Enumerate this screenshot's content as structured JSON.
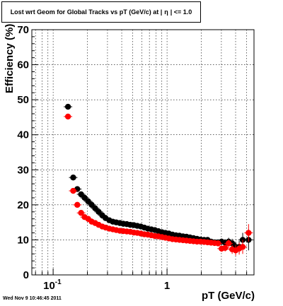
{
  "header": {
    "title_prefix": "Lost wrt Geom for Global Tracks vs pT (GeV/c) at |",
    "title_eta": "η",
    "title_suffix": "| <= 1.0"
  },
  "footer": {
    "timestamp": "Wed Nov  9 10:46:45 2011"
  },
  "chart_data": {
    "type": "scatter",
    "title": "Lost wrt Geom for Global Tracks vs pT (GeV/c) at | η | <= 1.0",
    "xlabel": "pT (GeV/c)",
    "ylabel": "Efficiency (%)",
    "xscale": "log",
    "xlim": [
      0.065,
      5.8
    ],
    "ylim": [
      0,
      70
    ],
    "grid": true,
    "x_ticks": [
      {
        "value": 0.1,
        "label": "10",
        "sup": "-1"
      },
      {
        "value": 1,
        "label": "1",
        "sup": ""
      }
    ],
    "y_ticks": [
      0,
      10,
      20,
      30,
      40,
      50,
      60,
      70
    ],
    "series": [
      {
        "color": "#000000",
        "points": [
          [
            0.135,
            48.0
          ],
          [
            0.15,
            27.8
          ],
          [
            0.163,
            24.5
          ],
          [
            0.176,
            23.0
          ],
          [
            0.189,
            22.0
          ],
          [
            0.203,
            21.0
          ],
          [
            0.218,
            20.0
          ],
          [
            0.234,
            19.0
          ],
          [
            0.251,
            18.0
          ],
          [
            0.27,
            17.0
          ],
          [
            0.289,
            16.2
          ],
          [
            0.311,
            15.6
          ],
          [
            0.334,
            15.2
          ],
          [
            0.358,
            15.0
          ],
          [
            0.385,
            14.8
          ],
          [
            0.413,
            14.6
          ],
          [
            0.443,
            14.5
          ],
          [
            0.476,
            14.3
          ],
          [
            0.511,
            14.2
          ],
          [
            0.548,
            14.0
          ],
          [
            0.589,
            13.8
          ],
          [
            0.632,
            13.5
          ],
          [
            0.678,
            13.2
          ],
          [
            0.728,
            13.0
          ],
          [
            0.782,
            12.8
          ],
          [
            0.839,
            12.5
          ],
          [
            0.901,
            12.2
          ],
          [
            0.967,
            12.0
          ],
          [
            1.038,
            11.8
          ],
          [
            1.115,
            11.5
          ],
          [
            1.197,
            11.3
          ],
          [
            1.285,
            11.2
          ],
          [
            1.38,
            11.0
          ],
          [
            1.481,
            10.9
          ],
          [
            1.59,
            10.7
          ],
          [
            1.707,
            10.5
          ],
          [
            1.833,
            10.3
          ],
          [
            1.968,
            10.1
          ],
          [
            2.113,
            10.0
          ],
          [
            2.269,
            10.0
          ],
          [
            2.435,
            9.5
          ],
          [
            2.615,
            9.3
          ],
          [
            2.807,
            9.3
          ],
          [
            3.014,
            9.5
          ],
          [
            3.236,
            9.2
          ],
          [
            3.474,
            9.5
          ],
          [
            3.73,
            9.0
          ],
          [
            4.004,
            8.0
          ],
          [
            4.3,
            8.0
          ],
          [
            4.616,
            10.0
          ],
          [
            5.198,
            10.0
          ]
        ],
        "errors": [
          [
            0.135,
            0.5
          ],
          [
            0.15,
            0.8
          ],
          [
            0.163,
            0.6
          ],
          [
            3.014,
            0.9
          ],
          [
            3.236,
            1.0
          ],
          [
            3.474,
            1.1
          ],
          [
            3.73,
            1.3
          ],
          [
            4.004,
            1.5
          ],
          [
            4.3,
            1.7
          ],
          [
            4.616,
            2.0
          ],
          [
            5.198,
            3.0
          ]
        ]
      },
      {
        "color": "#ff0000",
        "points": [
          [
            0.135,
            45.2
          ],
          [
            0.15,
            24.0
          ],
          [
            0.163,
            20.0
          ],
          [
            0.176,
            17.7
          ],
          [
            0.189,
            16.5
          ],
          [
            0.203,
            16.0
          ],
          [
            0.218,
            15.2
          ],
          [
            0.234,
            14.8
          ],
          [
            0.251,
            14.3
          ],
          [
            0.27,
            13.8
          ],
          [
            0.289,
            13.5
          ],
          [
            0.311,
            13.2
          ],
          [
            0.334,
            13.0
          ],
          [
            0.358,
            12.8
          ],
          [
            0.385,
            12.6
          ],
          [
            0.413,
            12.5
          ],
          [
            0.443,
            12.4
          ],
          [
            0.476,
            12.3
          ],
          [
            0.511,
            12.1
          ],
          [
            0.548,
            12.0
          ],
          [
            0.589,
            11.8
          ],
          [
            0.632,
            11.6
          ],
          [
            0.678,
            11.5
          ],
          [
            0.728,
            11.3
          ],
          [
            0.782,
            11.1
          ],
          [
            0.839,
            11.0
          ],
          [
            0.901,
            10.8
          ],
          [
            0.967,
            10.6
          ],
          [
            1.038,
            10.4
          ],
          [
            1.115,
            10.2
          ],
          [
            1.197,
            10.1
          ],
          [
            1.285,
            10.0
          ],
          [
            1.38,
            9.9
          ],
          [
            1.481,
            9.8
          ],
          [
            1.59,
            9.7
          ],
          [
            1.707,
            9.6
          ],
          [
            1.833,
            9.5
          ],
          [
            1.968,
            9.5
          ],
          [
            2.113,
            9.4
          ],
          [
            2.269,
            9.3
          ],
          [
            2.435,
            9.2
          ],
          [
            2.615,
            9.1
          ],
          [
            2.807,
            9.0
          ],
          [
            3.014,
            7.5
          ],
          [
            3.236,
            7.7
          ],
          [
            3.474,
            9.0
          ],
          [
            3.73,
            7.3
          ],
          [
            4.004,
            7.0
          ],
          [
            4.3,
            7.5
          ],
          [
            4.616,
            8.0
          ],
          [
            5.198,
            12.0
          ]
        ],
        "errors": [
          [
            0.135,
            0.5
          ],
          [
            0.15,
            0.8
          ],
          [
            0.163,
            0.6
          ],
          [
            3.014,
            0.9
          ],
          [
            3.236,
            1.0
          ],
          [
            3.474,
            1.1
          ],
          [
            3.73,
            1.3
          ],
          [
            4.004,
            1.5
          ],
          [
            4.3,
            1.7
          ],
          [
            4.616,
            2.0
          ],
          [
            5.198,
            2.5
          ]
        ]
      }
    ]
  }
}
